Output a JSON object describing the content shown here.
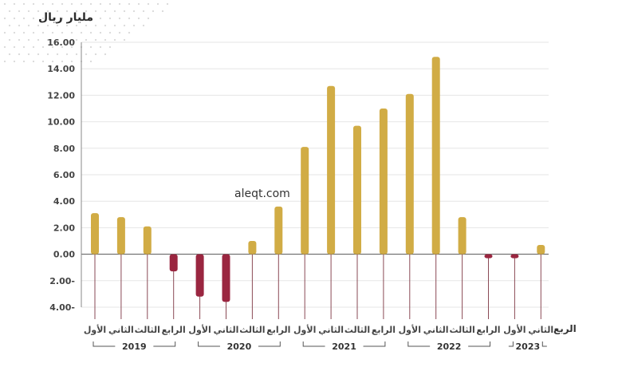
{
  "chart_data": {
    "type": "bar",
    "title": "",
    "ylabel": "مليار ريال",
    "xlabel": "الربع",
    "watermark": "aleqt.com",
    "ylim": [
      -4,
      16
    ],
    "yticks": [
      16,
      14,
      12,
      10,
      8,
      6,
      4,
      2,
      0,
      -2,
      -4
    ],
    "ytick_labels": [
      "16.00",
      "14.00",
      "12.00",
      "10.00",
      "8.00",
      "6.00",
      "4.00",
      "2.00",
      "0.00",
      "2.00-",
      "4.00-"
    ],
    "grid": true,
    "colors": {
      "positive": "#D1AC45",
      "negative": "#9A2640",
      "gridline": "#e6e6e6",
      "stem": "#8a4a55"
    },
    "categories": [
      "الأول",
      "الثاني",
      "الثالث",
      "الرابع",
      "الأول",
      "الثاني",
      "الثالث",
      "الرابع",
      "الأول",
      "الثاني",
      "الثالث",
      "الرابع",
      "الأول",
      "الثاني",
      "الثالث",
      "الرابع",
      "الأول",
      "الثاني"
    ],
    "values": [
      3.1,
      2.8,
      2.1,
      -1.3,
      -3.2,
      -3.6,
      1.0,
      3.6,
      8.1,
      12.7,
      9.7,
      11.0,
      12.1,
      14.9,
      2.8,
      -0.3,
      -0.3,
      0.7
    ],
    "years": [
      {
        "label": "2019",
        "start": 0,
        "end": 3
      },
      {
        "label": "2020",
        "start": 4,
        "end": 7
      },
      {
        "label": "2021",
        "start": 8,
        "end": 11
      },
      {
        "label": "2022",
        "start": 12,
        "end": 15
      },
      {
        "label": "2023",
        "start": 16,
        "end": 17
      }
    ]
  }
}
